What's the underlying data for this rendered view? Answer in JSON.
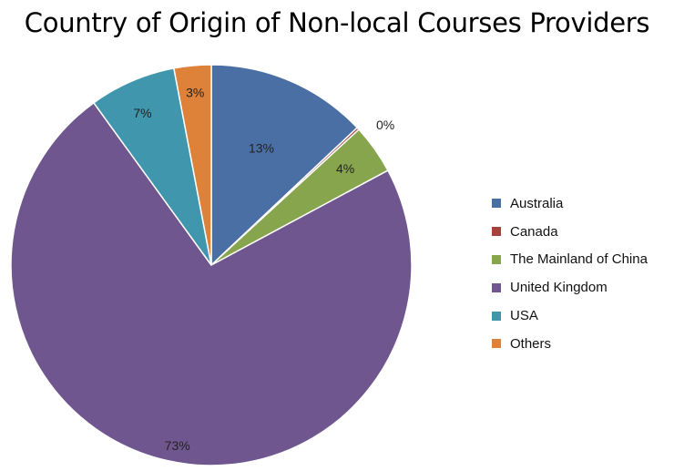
{
  "chart_data": {
    "type": "pie",
    "title": "Country of Origin of Non-local Courses Providers",
    "legend_position": "right",
    "series": [
      {
        "name": "Australia",
        "value": 13,
        "label": "13%",
        "color": "#4a6fa5"
      },
      {
        "name": "Canada",
        "value": 0.2,
        "label": "0%",
        "color": "#a8403c"
      },
      {
        "name": "The Mainland of China",
        "value": 4,
        "label": "4%",
        "color": "#87a54c"
      },
      {
        "name": "United Kingdom",
        "value": 73,
        "label": "73%",
        "color": "#6f568e"
      },
      {
        "name": "USA",
        "value": 7,
        "label": "7%",
        "color": "#3f96ad"
      },
      {
        "name": "Others",
        "value": 3,
        "label": "3%",
        "color": "#de8139"
      }
    ]
  }
}
